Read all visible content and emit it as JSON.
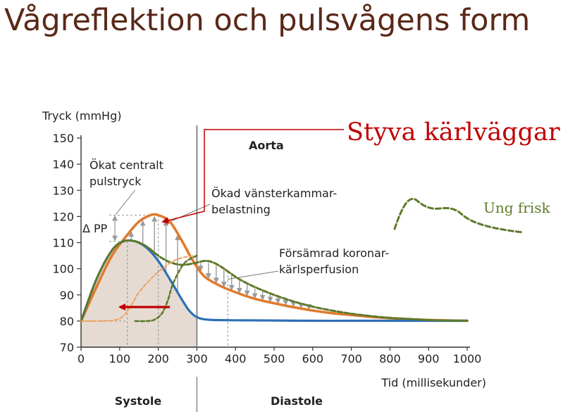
{
  "slide": {
    "title": "Vågreflektion och pulsvågens form"
  },
  "chart_data": {
    "type": "line",
    "ylabel": "Tryck (mmHg)",
    "xlabel": "Tid (millisekunder)",
    "xlim": [
      0,
      1000
    ],
    "ylim": [
      70,
      150
    ],
    "xticks": [
      0,
      100,
      200,
      300,
      400,
      500,
      600,
      700,
      800,
      900,
      1000
    ],
    "yticks": [
      70,
      80,
      90,
      100,
      110,
      120,
      130,
      140,
      150
    ],
    "grid": false,
    "systole_end_ms": 300,
    "phase_labels": {
      "systole": "Systole",
      "diastole": "Diastole"
    },
    "series": [
      {
        "name": "",
        "color": "#e07b2e",
        "x": [
          0,
          40,
          80,
          120,
          150,
          180,
          200,
          230,
          260,
          290,
          320,
          360,
          400,
          450,
          500,
          550,
          600,
          650,
          700,
          750,
          800,
          850,
          900,
          950,
          1000
        ],
        "y": [
          80,
          93,
          105,
          113,
          118,
          120.5,
          120.5,
          118,
          111,
          103,
          97,
          93.5,
          91,
          88.5,
          86.8,
          85.3,
          84,
          83,
          82.3,
          81.6,
          81.1,
          80.7,
          80.4,
          80.2,
          80.1
        ]
      },
      {
        "name": "",
        "color": "#2e6fb7",
        "x": [
          0,
          40,
          80,
          110,
          140,
          170,
          200,
          230,
          260,
          280,
          300,
          330,
          400,
          500,
          600,
          700,
          800,
          900,
          1000
        ],
        "y": [
          80,
          96,
          107,
          110.5,
          110.5,
          108,
          103,
          96,
          88.5,
          84,
          81.5,
          80.5,
          80.3,
          80.2,
          80.1,
          80.1,
          80.1,
          80.1,
          80.1
        ]
      },
      {
        "name": "",
        "color": "#5f7a2a",
        "dash": true,
        "x": [
          0,
          40,
          80,
          110,
          140,
          170,
          200,
          230,
          260,
          290,
          320,
          340,
          360,
          380,
          410,
          450,
          500,
          550,
          600,
          650,
          700,
          750,
          800,
          850,
          900,
          950,
          1000
        ],
        "y": [
          80,
          96,
          107,
          110.5,
          110.5,
          108.5,
          105,
          102.5,
          101.5,
          102,
          103,
          102.5,
          101,
          99,
          96,
          93,
          90,
          87.5,
          85.5,
          84,
          82.8,
          81.9,
          81.2,
          80.8,
          80.4,
          80.2,
          80.1
        ]
      },
      {
        "name": "",
        "color": "#f0a060",
        "dash": true,
        "x": [
          0,
          60,
          90,
          110,
          130,
          150,
          180,
          210,
          240,
          270,
          300
        ],
        "y": [
          80,
          80,
          80.5,
          82,
          86,
          91,
          96,
          100,
          103,
          104.5,
          105
        ]
      },
      {
        "name": "",
        "color": "#5f7a2a",
        "dash": true,
        "x": [
          140,
          170,
          190,
          210,
          225,
          235,
          250,
          270,
          300
        ],
        "y": [
          80,
          80,
          80.5,
          83,
          88,
          93,
          98,
          102.5,
          105
        ]
      }
    ],
    "delta_pp": {
      "label": "Δ PP",
      "low": 110.5,
      "high": 120.5
    },
    "annotations": [
      {
        "lines": [
          "Ökat centralt",
          "pulstryck"
        ]
      },
      {
        "lines": [
          "Aorta"
        ]
      },
      {
        "lines": [
          "Ökad vänsterkammar-",
          "belastning"
        ]
      },
      {
        "lines": [
          "Försämrad koronar-",
          "kärlsperfusion"
        ]
      }
    ],
    "callouts": {
      "stiff": {
        "text": "Styva kärlväggar",
        "color": "#c00000"
      },
      "young": {
        "text": "Ung frisk",
        "color": "#5f7a2a"
      }
    }
  }
}
